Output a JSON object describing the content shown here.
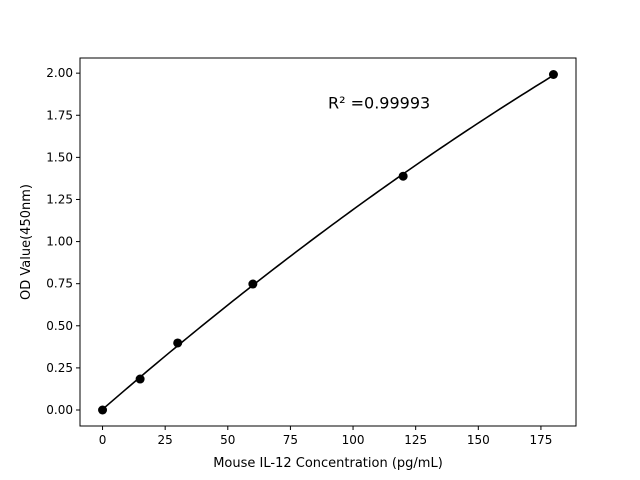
{
  "chart_data": {
    "type": "scatter",
    "title": "",
    "xlabel": "Mouse IL-12 Concentration (pg/mL)",
    "ylabel": "OD Value(450nm)",
    "xlim": [
      -9,
      189
    ],
    "ylim": [
      -0.095,
      2.09
    ],
    "xticks": [
      0,
      25,
      50,
      75,
      100,
      125,
      150,
      175
    ],
    "yticks": [
      0.0,
      0.25,
      0.5,
      0.75,
      1.0,
      1.25,
      1.5,
      1.75,
      2.0
    ],
    "xtick_labels": [
      "0",
      "25",
      "50",
      "75",
      "100",
      "125",
      "150",
      "175"
    ],
    "ytick_labels": [
      "0.00",
      "0.25",
      "0.50",
      "0.75",
      "1.00",
      "1.25",
      "1.50",
      "1.75",
      "2.00"
    ],
    "grid": false,
    "series": [
      {
        "x": [
          0,
          15,
          30,
          60,
          120,
          180
        ],
        "y": [
          0.0,
          0.184,
          0.398,
          0.748,
          1.388,
          1.992
        ],
        "marker": "circle",
        "color": "#000000",
        "fit_line": true
      }
    ],
    "annotation": {
      "text": "R² =0.99993",
      "x": 90,
      "y": 1.79
    }
  }
}
